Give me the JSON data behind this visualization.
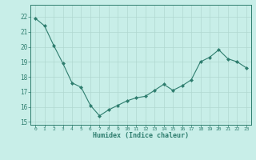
{
  "x": [
    0,
    1,
    2,
    3,
    4,
    5,
    6,
    7,
    8,
    9,
    10,
    11,
    12,
    13,
    14,
    15,
    16,
    17,
    18,
    19,
    20,
    21,
    22,
    23
  ],
  "y": [
    21.9,
    21.4,
    20.1,
    18.9,
    17.6,
    17.3,
    16.1,
    15.4,
    15.8,
    16.1,
    16.4,
    16.6,
    16.7,
    17.1,
    17.5,
    17.1,
    17.4,
    17.8,
    19.0,
    19.3,
    19.8,
    19.2,
    19.0,
    18.6
  ],
  "xlabel": "Humidex (Indice chaleur)",
  "xlim": [
    -0.5,
    23.5
  ],
  "ylim": [
    14.8,
    22.8
  ],
  "yticks": [
    15,
    16,
    17,
    18,
    19,
    20,
    21,
    22
  ],
  "xticks": [
    0,
    1,
    2,
    3,
    4,
    5,
    6,
    7,
    8,
    9,
    10,
    11,
    12,
    13,
    14,
    15,
    16,
    17,
    18,
    19,
    20,
    21,
    22,
    23
  ],
  "line_color": "#2e7d6e",
  "marker_color": "#2e7d6e",
  "bg_color": "#c8eee8",
  "grid_color": "#b0d8d0",
  "label_color": "#2e7d6e",
  "tick_color": "#2e7d6e",
  "axis_color": "#2e7d6e"
}
